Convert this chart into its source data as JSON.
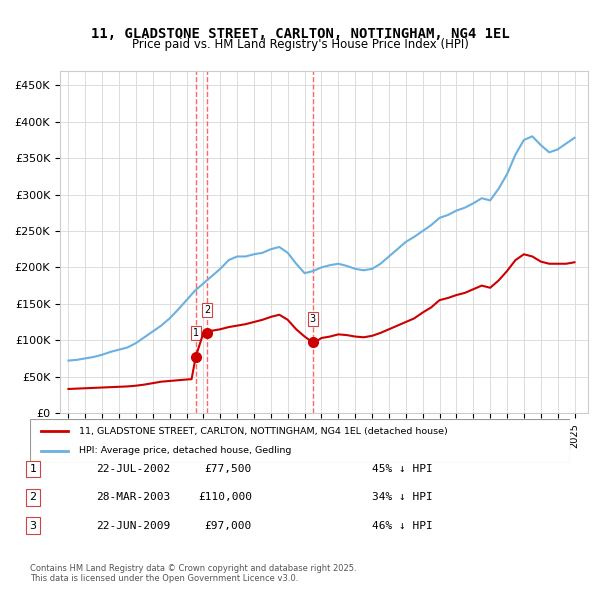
{
  "title": "11, GLADSTONE STREET, CARLTON, NOTTINGHAM, NG4 1EL",
  "subtitle": "Price paid vs. HM Land Registry's House Price Index (HPI)",
  "legend_line1": "11, GLADSTONE STREET, CARLTON, NOTTINGHAM, NG4 1EL (detached house)",
  "legend_line2": "HPI: Average price, detached house, Gedling",
  "footer": "Contains HM Land Registry data © Crown copyright and database right 2025.\nThis data is licensed under the Open Government Licence v3.0.",
  "transactions": [
    {
      "num": 1,
      "date": "22-JUL-2002",
      "price": "£77,500",
      "hpi": "45% ↓ HPI",
      "x_year": 2002.55
    },
    {
      "num": 2,
      "date": "28-MAR-2003",
      "price": "£110,000",
      "hpi": "34% ↓ HPI",
      "x_year": 2003.23
    },
    {
      "num": 3,
      "date": "22-JUN-2009",
      "price": "£97,000",
      "hpi": "46% ↓ HPI",
      "x_year": 2009.47
    }
  ],
  "red_line_color": "#cc0000",
  "blue_line_color": "#6ab0e0",
  "vline_color_red": "#ff6666",
  "vline_color_blue": "#aaaaff",
  "background_color": "#ffffff",
  "grid_color": "#dddddd",
  "ylim": [
    0,
    470000
  ],
  "xlim_start": 1994.5,
  "xlim_end": 2025.8,
  "hpi_data": {
    "years": [
      1995.0,
      1995.5,
      1996.0,
      1996.5,
      1997.0,
      1997.5,
      1998.0,
      1998.5,
      1999.0,
      1999.5,
      2000.0,
      2000.5,
      2001.0,
      2001.5,
      2002.0,
      2002.5,
      2003.0,
      2003.5,
      2004.0,
      2004.5,
      2005.0,
      2005.5,
      2006.0,
      2006.5,
      2007.0,
      2007.5,
      2008.0,
      2008.5,
      2009.0,
      2009.5,
      2010.0,
      2010.5,
      2011.0,
      2011.5,
      2012.0,
      2012.5,
      2013.0,
      2013.5,
      2014.0,
      2014.5,
      2015.0,
      2015.5,
      2016.0,
      2016.5,
      2017.0,
      2017.5,
      2018.0,
      2018.5,
      2019.0,
      2019.5,
      2020.0,
      2020.5,
      2021.0,
      2021.5,
      2022.0,
      2022.5,
      2023.0,
      2023.5,
      2024.0,
      2024.5,
      2025.0
    ],
    "values": [
      72000,
      73000,
      75000,
      77000,
      80000,
      84000,
      87000,
      90000,
      96000,
      104000,
      112000,
      120000,
      130000,
      142000,
      155000,
      168000,
      178000,
      188000,
      198000,
      210000,
      215000,
      215000,
      218000,
      220000,
      225000,
      228000,
      220000,
      205000,
      192000,
      195000,
      200000,
      203000,
      205000,
      202000,
      198000,
      196000,
      198000,
      205000,
      215000,
      225000,
      235000,
      242000,
      250000,
      258000,
      268000,
      272000,
      278000,
      282000,
      288000,
      295000,
      292000,
      308000,
      328000,
      355000,
      375000,
      380000,
      368000,
      358000,
      362000,
      370000,
      378000
    ]
  },
  "red_data": {
    "years": [
      1995.0,
      1995.5,
      1996.0,
      1996.5,
      1997.0,
      1997.5,
      1998.0,
      1998.5,
      1999.0,
      1999.5,
      2000.0,
      2000.5,
      2001.0,
      2001.5,
      2002.0,
      2002.3,
      2002.55,
      2003.0,
      2003.23,
      2003.5,
      2004.0,
      2004.5,
      2005.0,
      2005.5,
      2006.0,
      2006.5,
      2007.0,
      2007.5,
      2008.0,
      2008.5,
      2009.0,
      2009.47,
      2009.8,
      2010.0,
      2010.5,
      2011.0,
      2011.5,
      2012.0,
      2012.5,
      2013.0,
      2013.5,
      2014.0,
      2014.5,
      2015.0,
      2015.5,
      2016.0,
      2016.5,
      2017.0,
      2017.5,
      2018.0,
      2018.5,
      2019.0,
      2019.5,
      2020.0,
      2020.5,
      2021.0,
      2021.5,
      2022.0,
      2022.5,
      2023.0,
      2023.5,
      2024.0,
      2024.5,
      2025.0
    ],
    "values": [
      33000,
      33500,
      34000,
      34500,
      35000,
      35500,
      36000,
      36500,
      37500,
      39000,
      41000,
      43000,
      44000,
      45000,
      46000,
      46500,
      77500,
      110000,
      110000,
      113000,
      115000,
      118000,
      120000,
      122000,
      125000,
      128000,
      132000,
      135000,
      128000,
      115000,
      105000,
      97000,
      100000,
      103000,
      105000,
      108000,
      107000,
      105000,
      104000,
      106000,
      110000,
      115000,
      120000,
      125000,
      130000,
      138000,
      145000,
      155000,
      158000,
      162000,
      165000,
      170000,
      175000,
      172000,
      182000,
      195000,
      210000,
      218000,
      215000,
      208000,
      205000,
      205000,
      205000,
      207000
    ]
  }
}
